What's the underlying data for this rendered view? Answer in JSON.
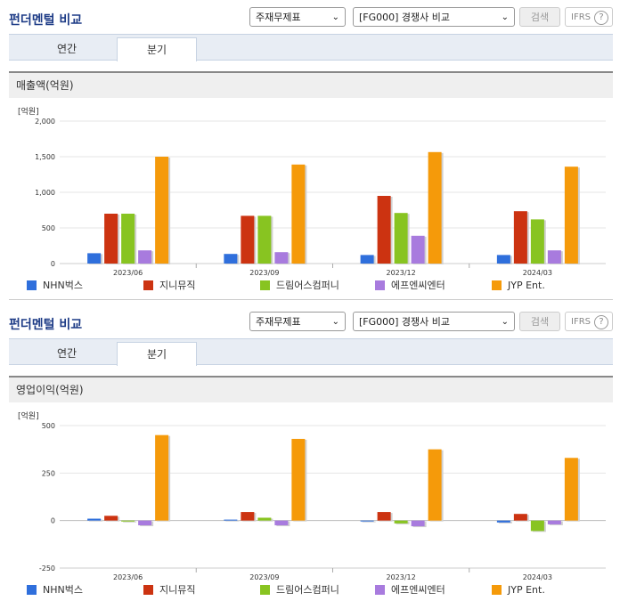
{
  "panels": [
    {
      "title": "펀더멘털 비교",
      "select_statement": "주재무제표",
      "select_compare": "[FG000] 경쟁사 비교",
      "search_label": "검색",
      "ifrs_label": "IFRS",
      "help_symbol": "?",
      "tab_annual": "연간",
      "tab_quarter": "분기",
      "section_title": "매출액(억원)",
      "unit": "[억원]"
    },
    {
      "title": "펀더멘털 비교",
      "select_statement": "주재무제표",
      "select_compare": "[FG000] 경쟁사 비교",
      "search_label": "검색",
      "ifrs_label": "IFRS",
      "help_symbol": "?",
      "tab_annual": "연간",
      "tab_quarter": "분기",
      "section_title": "영업이익(억원)",
      "unit": "[억원]"
    }
  ],
  "colors": [
    "#2f6fdc",
    "#cc3311",
    "#88c421",
    "#a87bde",
    "#f59a0a"
  ],
  "chart_data": [
    {
      "type": "bar",
      "title": "매출액(억원)",
      "categories": [
        "2023/06",
        "2023/09",
        "2023/12",
        "2024/03"
      ],
      "series": [
        {
          "name": "NHN벅스",
          "values": [
            145,
            135,
            120,
            120
          ]
        },
        {
          "name": "지니뮤직",
          "values": [
            700,
            670,
            950,
            735
          ]
        },
        {
          "name": "드림어스컴퍼니",
          "values": [
            700,
            670,
            710,
            620
          ]
        },
        {
          "name": "에프엔씨엔터",
          "values": [
            185,
            160,
            390,
            185
          ]
        },
        {
          "name": "JYP Ent.",
          "values": [
            1500,
            1390,
            1565,
            1360
          ]
        }
      ],
      "ylim": [
        0,
        2000
      ],
      "yticks": [
        0,
        500,
        1000,
        1500,
        2000
      ],
      "ytick_labels": [
        "0",
        "500",
        "1,000",
        "1,500",
        "2,000"
      ],
      "grid": true,
      "legend": "bottom"
    },
    {
      "type": "bar",
      "title": "영업이익(억원)",
      "categories": [
        "2023/06",
        "2023/09",
        "2023/12",
        "2024/03"
      ],
      "series": [
        {
          "name": "NHN벅스",
          "values": [
            10,
            5,
            0,
            -10
          ]
        },
        {
          "name": "지니뮤직",
          "values": [
            25,
            45,
            45,
            35
          ]
        },
        {
          "name": "드림어스컴퍼니",
          "values": [
            -5,
            15,
            -15,
            -55
          ]
        },
        {
          "name": "에프엔씨엔터",
          "values": [
            -25,
            -25,
            -30,
            -20
          ]
        },
        {
          "name": "JYP Ent.",
          "values": [
            450,
            430,
            375,
            330
          ]
        }
      ],
      "ylim": [
        -250,
        500
      ],
      "yticks": [
        -250,
        0,
        250,
        500
      ],
      "ytick_labels": [
        "-250",
        "0",
        "250",
        "500"
      ],
      "grid": true,
      "legend": "bottom"
    }
  ]
}
